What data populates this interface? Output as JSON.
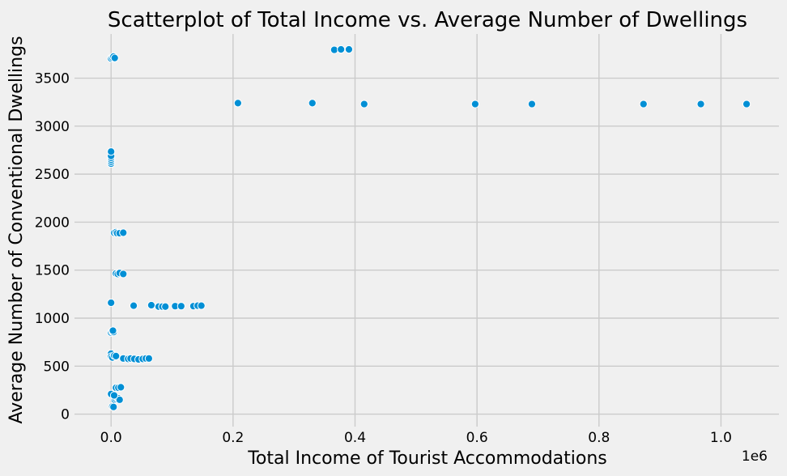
{
  "chart_data": {
    "type": "scatter",
    "title": "Scatterplot of Total Income vs. Average Number of Dwellings",
    "xlabel": "Total Income of Tourist Accommodations",
    "ylabel": "Average Number of Conventional Dwellings",
    "x_offset_label": "1e6",
    "xlim": [
      -60000,
      1095000
    ],
    "ylim": [
      -130,
      3960
    ],
    "xticks": [
      0,
      200000,
      400000,
      600000,
      800000,
      1000000
    ],
    "xtick_labels": [
      "0.0",
      "0.2",
      "0.4",
      "0.6",
      "0.8",
      "1.0"
    ],
    "yticks": [
      0,
      500,
      1000,
      1500,
      2000,
      2500,
      3000,
      3500
    ],
    "ytick_labels": [
      "0",
      "500",
      "1000",
      "1500",
      "2000",
      "2500",
      "3000",
      "3500"
    ],
    "grid": true,
    "legend": false,
    "point_color": "#008fd5",
    "series": [
      {
        "points": [
          [
            0,
            3705
          ],
          [
            2000,
            3715
          ],
          [
            4000,
            3725
          ],
          [
            6000,
            3710
          ],
          [
            0,
            2610
          ],
          [
            0,
            2630
          ],
          [
            0,
            2650
          ],
          [
            0,
            2670
          ],
          [
            0,
            2690
          ],
          [
            0,
            2735
          ],
          [
            0,
            1160
          ],
          [
            0,
            850
          ],
          [
            2000,
            860
          ],
          [
            4000,
            855
          ],
          [
            3000,
            870
          ],
          [
            0,
            630
          ],
          [
            0,
            600
          ],
          [
            2000,
            590
          ],
          [
            5000,
            610
          ],
          [
            8000,
            605
          ],
          [
            0,
            210
          ],
          [
            2000,
            80
          ],
          [
            4000,
            75
          ],
          [
            6000,
            150
          ],
          [
            8000,
            160
          ],
          [
            10000,
            170
          ],
          [
            12000,
            165
          ],
          [
            14000,
            150
          ],
          [
            8000,
            275
          ],
          [
            12000,
            275
          ],
          [
            16000,
            280
          ],
          [
            5000,
            195
          ],
          [
            5000,
            1890
          ],
          [
            8000,
            1895
          ],
          [
            10000,
            1885
          ],
          [
            14000,
            1885
          ],
          [
            20000,
            1890
          ],
          [
            8000,
            1465
          ],
          [
            11000,
            1460
          ],
          [
            14000,
            1470
          ],
          [
            20000,
            1460
          ],
          [
            20000,
            580
          ],
          [
            28000,
            575
          ],
          [
            32000,
            580
          ],
          [
            38000,
            575
          ],
          [
            45000,
            570
          ],
          [
            52000,
            575
          ],
          [
            57000,
            580
          ],
          [
            62000,
            580
          ],
          [
            37000,
            1130
          ],
          [
            66000,
            1135
          ],
          [
            78000,
            1120
          ],
          [
            84000,
            1120
          ],
          [
            89000,
            1120
          ],
          [
            105000,
            1125
          ],
          [
            115000,
            1125
          ],
          [
            135000,
            1125
          ],
          [
            142000,
            1130
          ],
          [
            148000,
            1130
          ],
          [
            208000,
            3240
          ],
          [
            330000,
            3240
          ],
          [
            415000,
            3230
          ],
          [
            597000,
            3230
          ],
          [
            690000,
            3230
          ],
          [
            873000,
            3230
          ],
          [
            967000,
            3230
          ],
          [
            1042000,
            3230
          ],
          [
            366000,
            3795
          ],
          [
            377000,
            3800
          ],
          [
            390000,
            3800
          ]
        ]
      }
    ]
  }
}
